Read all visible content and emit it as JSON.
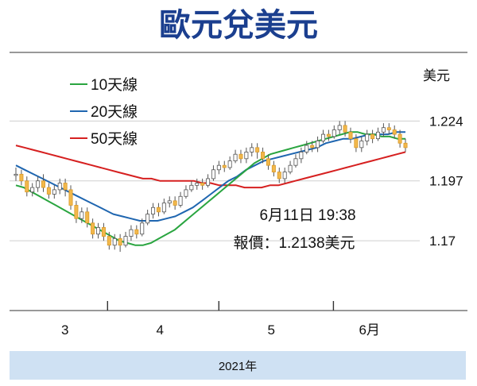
{
  "title": "歐元兌美元",
  "footer": "2021年",
  "chart_data": {
    "type": "candlestick",
    "ylabel": "美元",
    "ylim": [
      1.155,
      1.232
    ],
    "yticks": [
      1.224,
      1.197,
      1.17
    ],
    "ytick_labels": [
      "1.224",
      "1.197",
      "1.17"
    ],
    "xlim": [
      0,
      119
    ],
    "month_labels": [
      {
        "label": "3",
        "x": 15
      },
      {
        "label": "4",
        "x": 44
      },
      {
        "label": "5",
        "x": 78
      },
      {
        "label": "6月",
        "x": 108
      }
    ],
    "month_boundaries": [
      28,
      62,
      97
    ],
    "legend": [
      {
        "name": "10天線",
        "color": "#2aa540"
      },
      {
        "name": "20天線",
        "color": "#1f66b0"
      },
      {
        "name": "50天線",
        "color": "#d62020"
      }
    ],
    "annotation": {
      "line1": "6月11日 19:38",
      "line2": "報價：1.2138美元"
    },
    "candles": [
      [
        1.2,
        1.2,
        1.203,
        1.197
      ],
      [
        1.2,
        1.197,
        1.202,
        1.195
      ],
      [
        1.197,
        1.192,
        1.199,
        1.19
      ],
      [
        1.192,
        1.194,
        1.196,
        1.19
      ],
      [
        1.194,
        1.197,
        1.199,
        1.192
      ],
      [
        1.197,
        1.194,
        1.2,
        1.192
      ],
      [
        1.194,
        1.191,
        1.196,
        1.189
      ],
      [
        1.191,
        1.193,
        1.195,
        1.189
      ],
      [
        1.193,
        1.196,
        1.198,
        1.191
      ],
      [
        1.196,
        1.193,
        1.198,
        1.19
      ],
      [
        1.193,
        1.186,
        1.195,
        1.184
      ],
      [
        1.186,
        1.18,
        1.188,
        1.178
      ],
      [
        1.18,
        1.183,
        1.185,
        1.178
      ],
      [
        1.183,
        1.178,
        1.185,
        1.176
      ],
      [
        1.178,
        1.173,
        1.18,
        1.171
      ],
      [
        1.173,
        1.176,
        1.178,
        1.171
      ],
      [
        1.176,
        1.172,
        1.178,
        1.17
      ],
      [
        1.172,
        1.168,
        1.174,
        1.166
      ],
      [
        1.168,
        1.171,
        1.173,
        1.166
      ],
      [
        1.171,
        1.168,
        1.173,
        1.165
      ],
      [
        1.168,
        1.172,
        1.174,
        1.167
      ],
      [
        1.172,
        1.175,
        1.177,
        1.17
      ],
      [
        1.175,
        1.173,
        1.177,
        1.171
      ],
      [
        1.173,
        1.178,
        1.18,
        1.172
      ],
      [
        1.178,
        1.182,
        1.184,
        1.177
      ],
      [
        1.182,
        1.185,
        1.187,
        1.18
      ],
      [
        1.185,
        1.183,
        1.187,
        1.181
      ],
      [
        1.183,
        1.187,
        1.189,
        1.182
      ],
      [
        1.187,
        1.188,
        1.19,
        1.185
      ],
      [
        1.188,
        1.186,
        1.19,
        1.184
      ],
      [
        1.186,
        1.19,
        1.192,
        1.185
      ],
      [
        1.19,
        1.193,
        1.195,
        1.189
      ],
      [
        1.193,
        1.195,
        1.197,
        1.192
      ],
      [
        1.195,
        1.196,
        1.198,
        1.193
      ],
      [
        1.196,
        1.195,
        1.198,
        1.193
      ],
      [
        1.195,
        1.198,
        1.2,
        1.194
      ],
      [
        1.198,
        1.202,
        1.204,
        1.197
      ],
      [
        1.202,
        1.204,
        1.206,
        1.2
      ],
      [
        1.204,
        1.203,
        1.206,
        1.201
      ],
      [
        1.203,
        1.206,
        1.208,
        1.202
      ],
      [
        1.206,
        1.209,
        1.211,
        1.205
      ],
      [
        1.209,
        1.207,
        1.211,
        1.205
      ],
      [
        1.207,
        1.21,
        1.212,
        1.205
      ],
      [
        1.21,
        1.212,
        1.214,
        1.208
      ],
      [
        1.212,
        1.21,
        1.214,
        1.207
      ],
      [
        1.21,
        1.207,
        1.212,
        1.205
      ],
      [
        1.207,
        1.204,
        1.209,
        1.202
      ],
      [
        1.204,
        1.201,
        1.206,
        1.199
      ],
      [
        1.201,
        1.198,
        1.203,
        1.196
      ],
      [
        1.198,
        1.201,
        1.203,
        1.196
      ],
      [
        1.201,
        1.204,
        1.206,
        1.2
      ],
      [
        1.204,
        1.207,
        1.209,
        1.203
      ],
      [
        1.207,
        1.21,
        1.212,
        1.205
      ],
      [
        1.21,
        1.213,
        1.215,
        1.209
      ],
      [
        1.213,
        1.212,
        1.215,
        1.21
      ],
      [
        1.212,
        1.215,
        1.217,
        1.21
      ],
      [
        1.215,
        1.218,
        1.22,
        1.214
      ],
      [
        1.218,
        1.217,
        1.22,
        1.215
      ],
      [
        1.217,
        1.22,
        1.222,
        1.216
      ],
      [
        1.22,
        1.222,
        1.224,
        1.218
      ],
      [
        1.222,
        1.219,
        1.224,
        1.217
      ],
      [
        1.219,
        1.216,
        1.221,
        1.214
      ],
      [
        1.216,
        1.212,
        1.218,
        1.21
      ],
      [
        1.212,
        1.215,
        1.217,
        1.21
      ],
      [
        1.215,
        1.218,
        1.22,
        1.213
      ],
      [
        1.218,
        1.216,
        1.22,
        1.214
      ],
      [
        1.216,
        1.219,
        1.221,
        1.215
      ],
      [
        1.219,
        1.221,
        1.223,
        1.217
      ],
      [
        1.221,
        1.22,
        1.223,
        1.218
      ],
      [
        1.22,
        1.218,
        1.222,
        1.216
      ],
      [
        1.218,
        1.214,
        1.22,
        1.212
      ],
      [
        1.214,
        1.212,
        1.216,
        1.21
      ]
    ],
    "ma10": [
      1.195,
      1.194,
      1.192,
      1.19,
      1.188,
      1.186,
      1.184,
      1.182,
      1.18,
      1.178,
      1.176,
      1.174,
      1.172,
      1.17,
      1.169,
      1.168,
      1.168,
      1.169,
      1.171,
      1.173,
      1.175,
      1.178,
      1.181,
      1.184,
      1.187,
      1.19,
      1.193,
      1.196,
      1.199,
      1.202,
      1.205,
      1.207,
      1.209,
      1.21,
      1.211,
      1.212,
      1.213,
      1.214,
      1.215,
      1.216,
      1.217,
      1.218,
      1.219,
      1.219,
      1.218,
      1.218,
      1.217,
      1.217,
      1.216,
      1.216
    ],
    "ma20": [
      1.204,
      1.202,
      1.2,
      1.198,
      1.196,
      1.194,
      1.192,
      1.19,
      1.188,
      1.186,
      1.184,
      1.182,
      1.181,
      1.18,
      1.179,
      1.179,
      1.179,
      1.18,
      1.181,
      1.183,
      1.185,
      1.188,
      1.191,
      1.194,
      1.197,
      1.199,
      1.202,
      1.204,
      1.206,
      1.207,
      1.208,
      1.209,
      1.21,
      1.211,
      1.212,
      1.214,
      1.215,
      1.216,
      1.216,
      1.217,
      1.218,
      1.218,
      1.218,
      1.219,
      1.219
    ],
    "ma50": [
      1.213,
      1.212,
      1.211,
      1.21,
      1.209,
      1.208,
      1.207,
      1.206,
      1.205,
      1.204,
      1.203,
      1.202,
      1.201,
      1.2,
      1.199,
      1.198,
      1.198,
      1.197,
      1.197,
      1.197,
      1.197,
      1.197,
      1.196,
      1.196,
      1.195,
      1.195,
      1.195,
      1.194,
      1.194,
      1.194,
      1.195,
      1.195,
      1.196,
      1.197,
      1.198,
      1.199,
      1.2,
      1.201,
      1.202,
      1.203,
      1.204,
      1.205,
      1.206,
      1.207,
      1.208,
      1.209,
      1.21
    ]
  }
}
